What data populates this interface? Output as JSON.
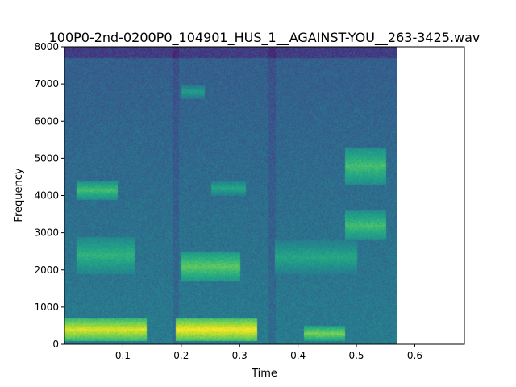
{
  "chart_data": {
    "type": "heatmap",
    "title": "100P0-2nd-0200P0_104901_HUS_1__AGAINST-YOU__263-3425.wav",
    "xlabel": "Time",
    "ylabel": "Frequency",
    "xlim": [
      0.0,
      0.685
    ],
    "ylim": [
      0,
      8000
    ],
    "x_ticks": [
      0.1,
      0.2,
      0.3,
      0.4,
      0.5,
      0.6
    ],
    "x_tick_labels": [
      "0.1",
      "0.2",
      "0.3",
      "0.4",
      "0.5",
      "0.6"
    ],
    "y_ticks": [
      0,
      1000,
      2000,
      3000,
      4000,
      5000,
      6000,
      7000,
      8000
    ],
    "y_tick_labels": [
      "0",
      "1000",
      "2000",
      "3000",
      "4000",
      "5000",
      "6000",
      "7000",
      "8000"
    ],
    "signal_extent_time": [
      0.0,
      0.57
    ],
    "colormap": "viridis",
    "grid": false,
    "legend": "none",
    "energy_regions": [
      {
        "t": [
          0.0,
          0.14
        ],
        "f": [
          100,
          700
        ],
        "level": 0.95
      },
      {
        "t": [
          0.19,
          0.33
        ],
        "f": [
          100,
          700
        ],
        "level": 1.0
      },
      {
        "t": [
          0.41,
          0.48
        ],
        "f": [
          100,
          500
        ],
        "level": 0.8
      },
      {
        "t": [
          0.02,
          0.09
        ],
        "f": [
          3900,
          4400
        ],
        "level": 0.7
      },
      {
        "t": [
          0.02,
          0.12
        ],
        "f": [
          1900,
          2900
        ],
        "level": 0.65
      },
      {
        "t": [
          0.2,
          0.3
        ],
        "f": [
          1700,
          2500
        ],
        "level": 0.75
      },
      {
        "t": [
          0.25,
          0.31
        ],
        "f": [
          4000,
          4400
        ],
        "level": 0.6
      },
      {
        "t": [
          0.48,
          0.55
        ],
        "f": [
          4300,
          5300
        ],
        "level": 0.7
      },
      {
        "t": [
          0.48,
          0.55
        ],
        "f": [
          2800,
          3600
        ],
        "level": 0.7
      },
      {
        "t": [
          0.36,
          0.5
        ],
        "f": [
          1900,
          2800
        ],
        "level": 0.6
      },
      {
        "t": [
          0.2,
          0.24
        ],
        "f": [
          6600,
          7000
        ],
        "level": 0.55
      }
    ]
  }
}
